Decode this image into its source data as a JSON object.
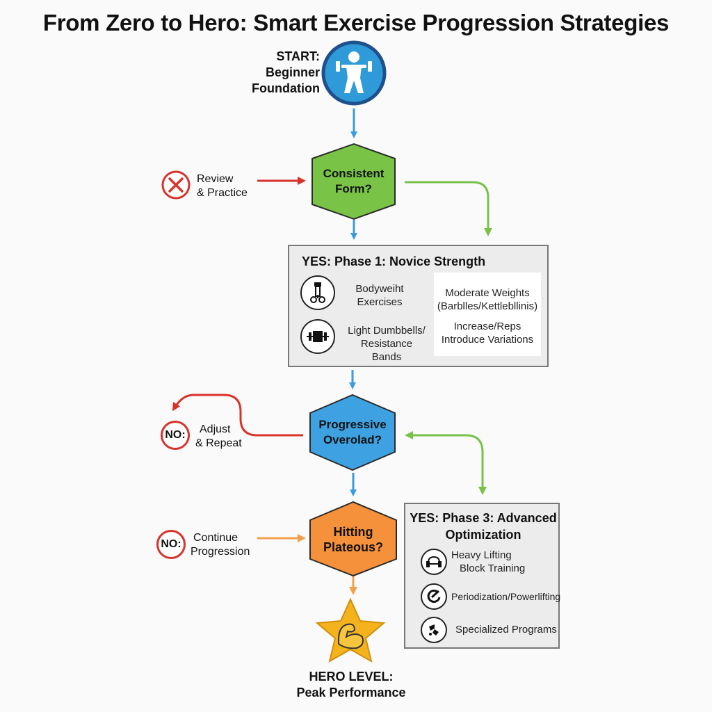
{
  "title": "From Zero to Hero: Smart Exercise Progression Strategies",
  "start": {
    "line1": "START:",
    "line2": "Beginner",
    "line3": "Foundation",
    "icon": "weightlifter-icon",
    "color": "#2e9bd8"
  },
  "decision1": {
    "line1": "Consistent",
    "line2": "Form?",
    "color": "#79c447"
  },
  "review": {
    "line1": "Review",
    "line2": "& Practice",
    "icon": "x-circle-icon"
  },
  "phase1": {
    "title": "YES: Phase 1: Novice Strength",
    "items": [
      {
        "line1": "Bodyweiht",
        "line2": "Exercises",
        "icon": "bodyweight-icon"
      },
      {
        "line1": "Light Dumbbells/",
        "line2": "Resistance Bands",
        "icon": "dumbbell-icon"
      }
    ],
    "right": [
      {
        "line1": "Moderate Weights",
        "line2": "(Barblles/Kettlebllinis)"
      },
      {
        "line1": "Increase/Reps",
        "line2": "Introduce Variations"
      }
    ]
  },
  "decision2": {
    "line1": "Progressive",
    "line2": "Overolad?",
    "color": "#3ea2e2"
  },
  "adjust": {
    "badge": "NO:",
    "line1": "Adjust",
    "line2": "& Repeat"
  },
  "decision3": {
    "line1": "Hitting",
    "line2": "Plateous?",
    "color": "#f5913a"
  },
  "continue": {
    "badge": "NO:",
    "line1": "Continue",
    "line2": "Progression"
  },
  "phase3": {
    "title1": "YES: Phase 3: Advanced",
    "title2": "Optimization",
    "items": [
      {
        "line1": "Heavy Lifting",
        "line2": "Block Training",
        "icon": "heavy-lifting-icon"
      },
      {
        "line1": "Periodization/Powerlifting",
        "line2": "",
        "icon": "periodization-icon"
      },
      {
        "line1": "Specialized Programs",
        "line2": "",
        "icon": "specialized-programs-icon"
      }
    ]
  },
  "hero": {
    "line1": "HERO LEVEL:",
    "line2": "Peak Performance",
    "icon": "muscle-star-icon",
    "color": "#f4b31c"
  },
  "colors": {
    "blue_arrow": "#3a9be0",
    "red_arrow": "#d9322a",
    "green_arrow": "#78c24a",
    "orange_arrow": "#f3a04a"
  }
}
